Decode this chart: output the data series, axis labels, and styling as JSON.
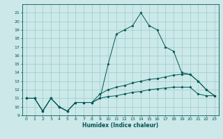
{
  "xlabel": "Humidex (Indice chaleur)",
  "bg_color": "#cce8e8",
  "line_color": "#005555",
  "grid_color": "#99cccc",
  "x": [
    0,
    1,
    2,
    3,
    4,
    5,
    6,
    7,
    8,
    9,
    10,
    11,
    12,
    13,
    14,
    15,
    16,
    17,
    18,
    19,
    20,
    21,
    22,
    23
  ],
  "line1": [
    11,
    11,
    9.5,
    11,
    10,
    9.5,
    10.5,
    10.5,
    10.5,
    11,
    11.2,
    11.3,
    11.5,
    11.7,
    11.8,
    12.0,
    12.1,
    12.2,
    12.3,
    12.3,
    12.3,
    11.5,
    11.3,
    11.3
  ],
  "line2": [
    11,
    11,
    9.5,
    11,
    10,
    9.5,
    10.5,
    10.5,
    10.5,
    11.5,
    12.0,
    12.3,
    12.5,
    12.8,
    13.0,
    13.2,
    13.3,
    13.5,
    13.7,
    13.8,
    13.8,
    13.0,
    12.0,
    11.3
  ],
  "line3": [
    11,
    11,
    9.5,
    11,
    10,
    9.5,
    10.5,
    10.5,
    10.5,
    11,
    15,
    18.5,
    19.0,
    19.5,
    21,
    19.5,
    19,
    17,
    16.5,
    14,
    13.8,
    13,
    12,
    11.3
  ],
  "xlim": [
    -0.5,
    23.5
  ],
  "ylim": [
    9,
    22
  ],
  "yticks": [
    9,
    10,
    11,
    12,
    13,
    14,
    15,
    16,
    17,
    18,
    19,
    20,
    21
  ],
  "xticks": [
    0,
    1,
    2,
    3,
    4,
    5,
    6,
    7,
    8,
    9,
    10,
    11,
    12,
    13,
    14,
    15,
    16,
    17,
    18,
    19,
    20,
    21,
    22,
    23
  ]
}
